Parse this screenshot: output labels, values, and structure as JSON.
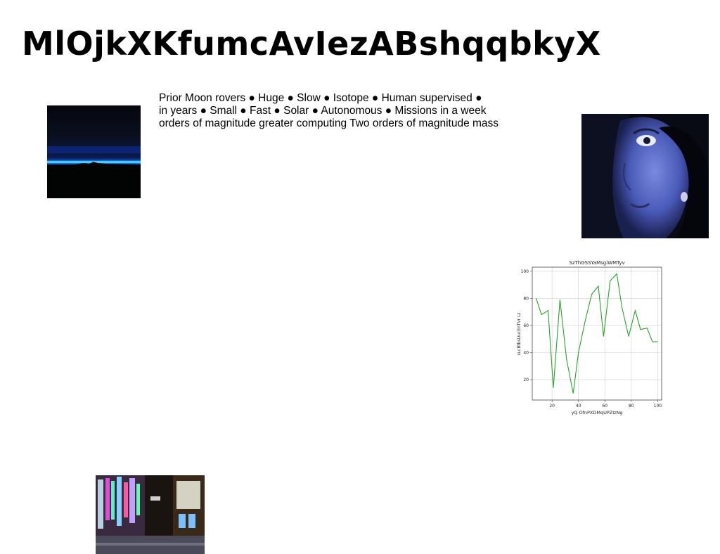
{
  "page": {
    "title": "MlOjkXKfumcAvIezABshqqbkyX"
  },
  "text_block": {
    "lines": [
      "Prior Moon rovers ● Huge ● Slow ● Isotope ● Human supervised ●",
      "in years ● Small ● Fast ● Solar ● Autonomous ● Missions in a week",
      "orders of magnitude greater computing Two orders of magnitude mass"
    ]
  },
  "images": {
    "horizon": {
      "alt": "dark horizon with glowing blue line"
    },
    "portrait": {
      "alt": "blue-tinted portrait of a woman"
    },
    "street": {
      "alt": "neon-lit street at night"
    }
  },
  "chart_data": {
    "type": "line",
    "title": "SzThGSSYaMsgiWMTyv",
    "xlabel": "yQ OfnPXDMqUPZIzNg",
    "ylabel": "sLcBtbsUucEnTVr Lz",
    "xlim": [
      5,
      103
    ],
    "ylim": [
      5,
      103
    ],
    "xticks": [
      20,
      40,
      60,
      80,
      100
    ],
    "yticks": [
      20,
      40,
      60,
      80,
      100
    ],
    "grid": true,
    "color": "#2ca02c",
    "series": [
      {
        "x": [
          8,
          12,
          17,
          21,
          26,
          31,
          36,
          40,
          45,
          50,
          55,
          59,
          64,
          69,
          73,
          78,
          83,
          87,
          92,
          96,
          100
        ],
        "y": [
          80,
          68,
          71,
          14,
          79,
          35,
          10,
          40,
          63,
          83,
          89,
          52,
          93,
          98,
          73,
          52,
          71,
          57,
          58,
          48,
          48
        ]
      }
    ]
  }
}
